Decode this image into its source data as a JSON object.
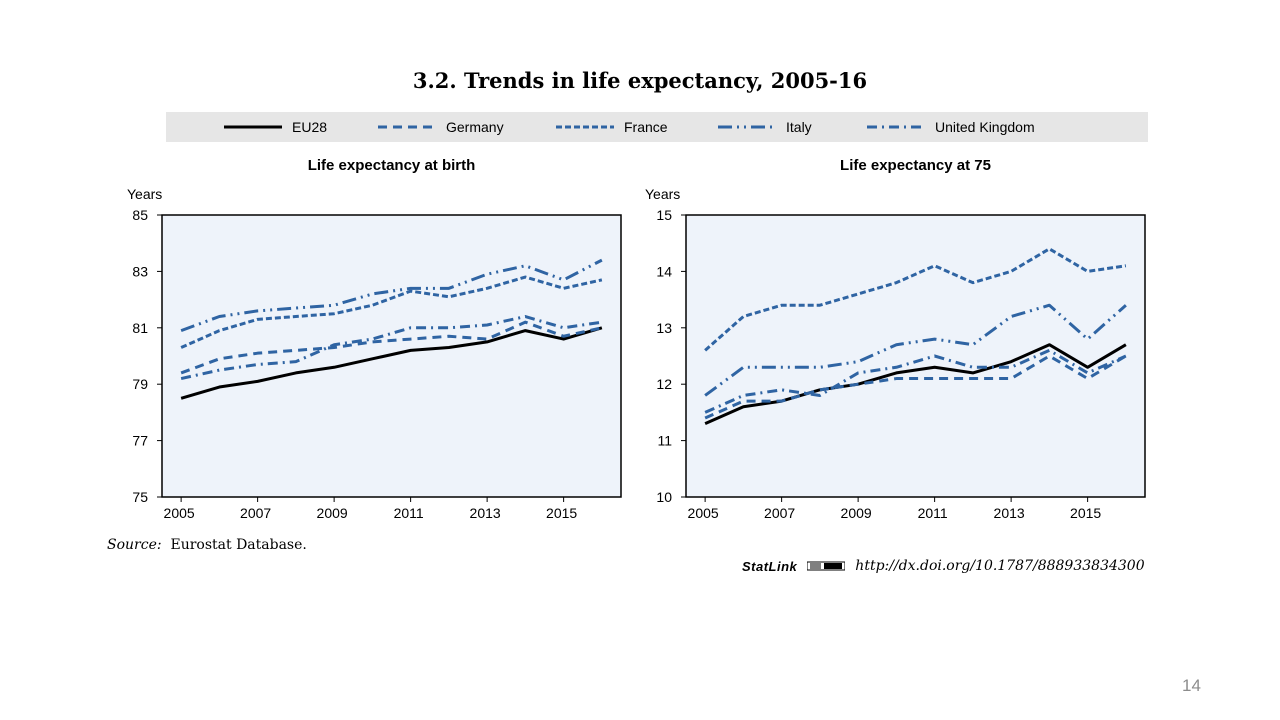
{
  "title": "3.2.  Trends in life expectancy, 2005-16",
  "legend": [
    {
      "name": "EU28",
      "key": "eu28"
    },
    {
      "name": "Germany",
      "key": "germany"
    },
    {
      "name": "France",
      "key": "france"
    },
    {
      "name": "Italy",
      "key": "italy"
    },
    {
      "name": "United Kingdom",
      "key": "uk"
    }
  ],
  "styles": {
    "eu28": {
      "color": "#000000",
      "dash": ""
    },
    "germany": {
      "color": "#2f64a3",
      "dash": "9,6"
    },
    "france": {
      "color": "#2f64a3",
      "dash": "6,3"
    },
    "italy": {
      "color": "#2f64a3",
      "dash": "14,5,2,5,2,5"
    },
    "uk": {
      "color": "#2f64a3",
      "dash": "10,5,2,5"
    }
  },
  "source": {
    "label": "Source:",
    "text": "Eurostat Database."
  },
  "statlink": {
    "label": "StatLink",
    "url": "http://dx.doi.org/10.1787/888933834300"
  },
  "page_number": "14",
  "chart_data": [
    {
      "type": "line",
      "title": "Life expectancy at birth",
      "ylabel": "Years",
      "ylim": [
        75,
        85
      ],
      "yticks": [
        75,
        77,
        79,
        81,
        83,
        85
      ],
      "x": [
        2005,
        2006,
        2007,
        2008,
        2009,
        2010,
        2011,
        2012,
        2013,
        2014,
        2015,
        2016
      ],
      "xticks": [
        2005,
        2007,
        2009,
        2011,
        2013,
        2015
      ],
      "grid": false,
      "series": [
        {
          "name": "EU28",
          "key": "eu28",
          "values": [
            78.5,
            78.9,
            79.1,
            79.4,
            79.6,
            79.9,
            80.2,
            80.3,
            80.5,
            80.9,
            80.6,
            81.0
          ]
        },
        {
          "name": "Germany",
          "key": "germany",
          "values": [
            79.4,
            79.9,
            80.1,
            80.2,
            80.3,
            80.5,
            80.6,
            80.7,
            80.6,
            81.2,
            80.7,
            81.0
          ]
        },
        {
          "name": "France",
          "key": "france",
          "values": [
            80.3,
            80.9,
            81.3,
            81.4,
            81.5,
            81.8,
            82.3,
            82.1,
            82.4,
            82.8,
            82.4,
            82.7
          ]
        },
        {
          "name": "Italy",
          "key": "italy",
          "values": [
            80.9,
            81.4,
            81.6,
            81.7,
            81.8,
            82.2,
            82.4,
            82.4,
            82.9,
            83.2,
            82.7,
            83.4
          ]
        },
        {
          "name": "United Kingdom",
          "key": "uk",
          "values": [
            79.2,
            79.5,
            79.7,
            79.8,
            80.4,
            80.6,
            81.0,
            81.0,
            81.1,
            81.4,
            81.0,
            81.2
          ]
        }
      ]
    },
    {
      "type": "line",
      "title": "Life expectancy at 75",
      "ylabel": "Years",
      "ylim": [
        10,
        15
      ],
      "yticks": [
        10,
        11,
        12,
        13,
        14,
        15
      ],
      "x": [
        2005,
        2006,
        2007,
        2008,
        2009,
        2010,
        2011,
        2012,
        2013,
        2014,
        2015,
        2016
      ],
      "xticks": [
        2005,
        2007,
        2009,
        2011,
        2013,
        2015
      ],
      "grid": false,
      "series": [
        {
          "name": "EU28",
          "key": "eu28",
          "values": [
            11.3,
            11.6,
            11.7,
            11.9,
            12.0,
            12.2,
            12.3,
            12.2,
            12.4,
            12.7,
            12.3,
            12.7
          ]
        },
        {
          "name": "Germany",
          "key": "germany",
          "values": [
            11.4,
            11.7,
            11.7,
            11.9,
            12.0,
            12.1,
            12.1,
            12.1,
            12.1,
            12.5,
            12.1,
            12.5
          ]
        },
        {
          "name": "France",
          "key": "france",
          "values": [
            12.6,
            13.2,
            13.4,
            13.4,
            13.6,
            13.8,
            14.1,
            13.8,
            14.0,
            14.4,
            14.0,
            14.1
          ]
        },
        {
          "name": "Italy",
          "key": "italy",
          "values": [
            11.8,
            12.3,
            12.3,
            12.3,
            12.4,
            12.7,
            12.8,
            12.7,
            13.2,
            13.4,
            12.8,
            13.4
          ]
        },
        {
          "name": "United Kingdom",
          "key": "uk",
          "values": [
            11.5,
            11.8,
            11.9,
            11.8,
            12.2,
            12.3,
            12.5,
            12.3,
            12.3,
            12.6,
            12.2,
            12.5
          ]
        }
      ]
    }
  ]
}
